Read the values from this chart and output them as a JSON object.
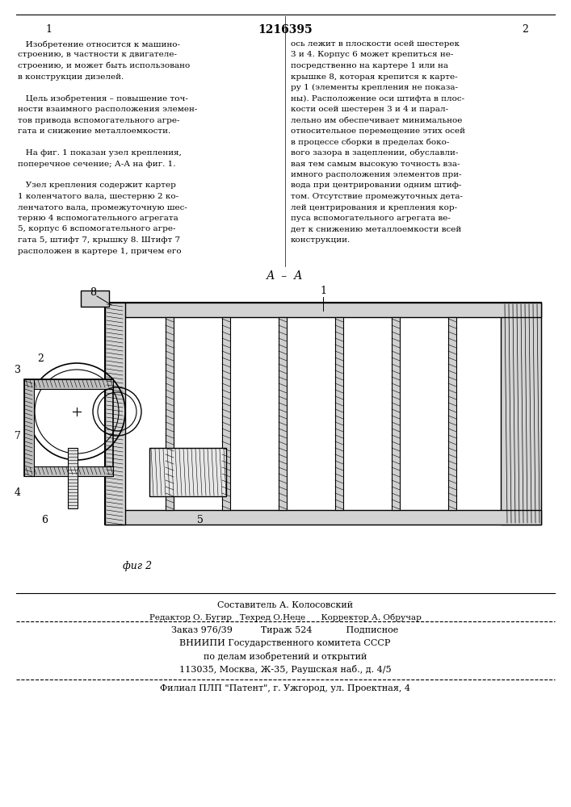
{
  "patent_number": "1216395",
  "col1_number": "1",
  "col2_number": "2",
  "bg_color": "#ffffff",
  "text_color": "#000000",
  "fig_label": "А - А",
  "fig2_label": "фиг 2",
  "col1_text": [
    "   Изобретение относится к машино-",
    "строению, в частности к двигателе-",
    "строению, и может быть использовано",
    "в конструкции дизелей.",
    "",
    "   Цель изобретения – повышение точ-",
    "ности взаимного расположения элемен-",
    "тов привода вспомогательного агре-",
    "гата и снижение металлоемкости.",
    "",
    "   На фиг. 1 показан узел крепления,",
    "поперечное сечение; А-А на фиг. 1.",
    "",
    "   Узел крепления содержит картер",
    "1 коленчатого вала, шестерню 2 ко-",
    "ленчатого вала, промежуточную шес-",
    "терню 4 вспомогательного агрегата",
    "5, корпус 6 вспомогательного агре-",
    "гата 5, штифт 7, крышку 8. Штифт 7",
    "расположен в картере 1, причем его"
  ],
  "col2_text": [
    "ось лежит в плоскости осей шестерек",
    "3 и 4. Корпус 6 может крепиться не-",
    "посредственно на картере 1 или на",
    "крышке 8, которая крепится к карте-",
    "ру 1 (элементы крепления не показа-",
    "ны). Расположение оси штифта в плос-",
    "кости осей шестерен 3 и 4 и парал-",
    "лельно им обеспечивает минимальное",
    "относительное перемещение этих осей",
    "в процессе сборки в пределах боко-",
    "вого зазора в зацеплении, обуславли-",
    "вая тем самым высокую точность вза-",
    "имного расположения элементов при-",
    "вода при центрировании одним штиф-",
    "том. Отсутствие промежуточных дета-",
    "лей центрирования и крепления кор-",
    "пуса вспомогательного агрегата ве-",
    "дет к снижению металлоемкости всей",
    "конструкции."
  ],
  "bottom_text_line1": "Составитель А. Колосовский",
  "bottom_text_line2": "Редактор О. Бугир   Техред О.Неце      Корректор А. Обручар",
  "bottom_text_line3": "Заказ 976/39          Тираж 524            Подписное",
  "bottom_text_line4": "ВНИИПИ Государственного комитета СССР",
  "bottom_text_line5": "по делам изобретений и открытий",
  "bottom_text_line6": "113035, Москва, Ж-35, Раушская наб., д. 4/5",
  "bottom_text_line7": "Филиал ПЛП \"Патент\", г. Ужгород, ул. Проектная, 4"
}
